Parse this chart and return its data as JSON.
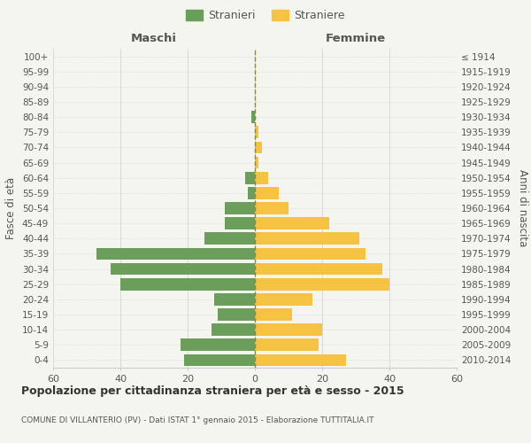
{
  "age_groups": [
    "0-4",
    "5-9",
    "10-14",
    "15-19",
    "20-24",
    "25-29",
    "30-34",
    "35-39",
    "40-44",
    "45-49",
    "50-54",
    "55-59",
    "60-64",
    "65-69",
    "70-74",
    "75-79",
    "80-84",
    "85-89",
    "90-94",
    "95-99",
    "100+"
  ],
  "birth_years": [
    "2010-2014",
    "2005-2009",
    "2000-2004",
    "1995-1999",
    "1990-1994",
    "1985-1989",
    "1980-1984",
    "1975-1979",
    "1970-1974",
    "1965-1969",
    "1960-1964",
    "1955-1959",
    "1950-1954",
    "1945-1949",
    "1940-1944",
    "1935-1939",
    "1930-1934",
    "1925-1929",
    "1920-1924",
    "1915-1919",
    "≤ 1914"
  ],
  "maschi": [
    21,
    22,
    13,
    11,
    12,
    40,
    43,
    47,
    15,
    9,
    9,
    2,
    3,
    0,
    0,
    0,
    1,
    0,
    0,
    0,
    0
  ],
  "femmine": [
    27,
    19,
    20,
    11,
    17,
    40,
    38,
    33,
    31,
    22,
    10,
    7,
    4,
    1,
    2,
    1,
    0,
    0,
    0,
    0,
    0
  ],
  "color_maschi": "#6a9e5a",
  "color_femmine": "#f5c242",
  "title": "Popolazione per cittadinanza straniera per età e sesso - 2015",
  "subtitle": "COMUNE DI VILLANTERIO (PV) - Dati ISTAT 1° gennaio 2015 - Elaborazione TUTTITALIA.IT",
  "ylabel_left": "Fasce di età",
  "ylabel_right": "Anni di nascita",
  "label_maschi": "Maschi",
  "label_femmine": "Femmine",
  "legend_maschi": "Stranieri",
  "legend_femmine": "Straniere",
  "xlim": 60,
  "background_color": "#f5f5f0",
  "grid_color": "#cccccc"
}
